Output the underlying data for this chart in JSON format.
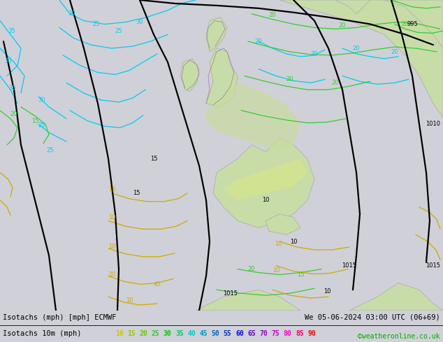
{
  "title_left": "Isotachs (mph) [mph] ECMWF",
  "title_right": "We 05-06-2024 03:00 UTC (06+69)",
  "legend_label": "Isotachs 10m (mph)",
  "legend_values": [
    10,
    15,
    20,
    25,
    30,
    35,
    40,
    45,
    50,
    55,
    60,
    65,
    70,
    75,
    80,
    85,
    90
  ],
  "legend_colors": [
    "#c8c800",
    "#96c800",
    "#64c800",
    "#32c832",
    "#00c800",
    "#00c864",
    "#00c8c8",
    "#0096c8",
    "#0064c8",
    "#0032c8",
    "#0000ff",
    "#6400c8",
    "#9600c8",
    "#c800c8",
    "#ff00c8",
    "#ff0064",
    "#ff0000"
  ],
  "watermark": "©weatheronline.co.uk",
  "sea_color": "#d0d0d8",
  "land_color": "#c8dca8",
  "land_light": "#dce8bc",
  "bg_color": "#d0d0d8",
  "bottom_bar_bg": "#e8e8e8",
  "fig_width": 6.34,
  "fig_height": 4.9,
  "dpi": 100
}
